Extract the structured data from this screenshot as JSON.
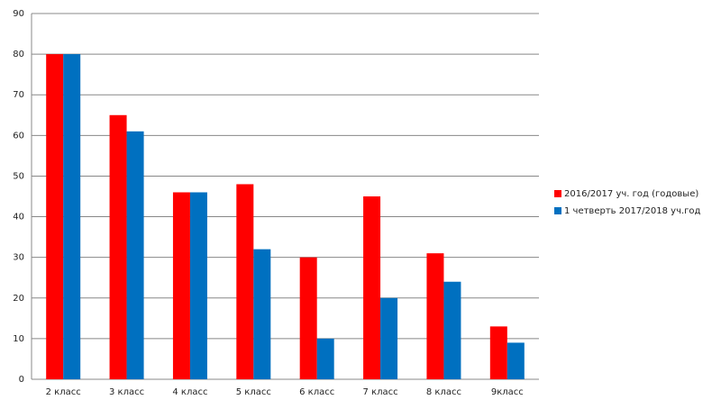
{
  "chart_data": {
    "type": "bar",
    "categories": [
      "2 класс",
      "3 класс",
      "4 класс",
      "5 класс",
      "6 класс",
      "7 класс",
      "8 класс",
      "9класс"
    ],
    "series": [
      {
        "name": "2016/2017 уч. год (годовые)",
        "color": "#ff0000",
        "values": [
          80,
          65,
          46,
          48,
          30,
          45,
          31,
          13
        ]
      },
      {
        "name": "1 четверть 2017/2018 уч.год",
        "color": "#0070c0",
        "values": [
          80,
          61,
          46,
          32,
          10,
          20,
          24,
          9
        ]
      }
    ],
    "ylim": [
      0,
      90
    ],
    "yticks": [
      0,
      10,
      20,
      30,
      40,
      50,
      60,
      70,
      80,
      90
    ],
    "grid": true,
    "legend": "right"
  }
}
